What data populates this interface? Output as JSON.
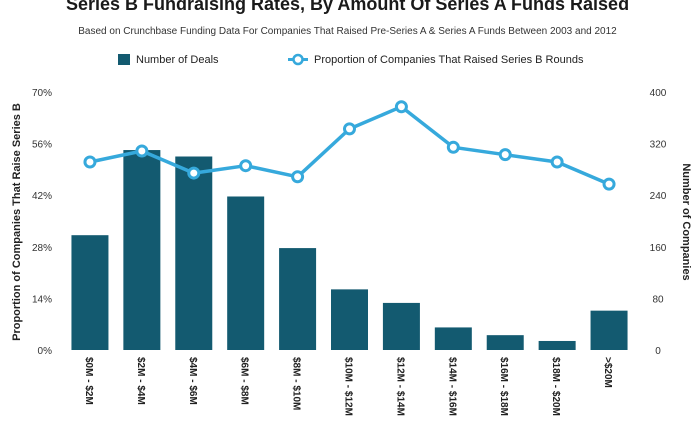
{
  "chart_data": {
    "type": "bar",
    "title": "Series B Fundraising Rates, By Amount Of Series A Funds Raised",
    "subtitle": "Based on Crunchbase Funding Data For Companies That Raised Pre-Series A & Series A Funds Between 2003 and 2012",
    "categories": [
      "$0M - $2M",
      "$2M - $4M",
      "$4M - $6M",
      "$6M - $8M",
      "$8M - $10M",
      "$10M - $12M",
      "$12M - $14M",
      "$14M - $16M",
      "$16M - $18M",
      "$18M - $20M",
      ">$20M"
    ],
    "series": [
      {
        "name": "Number of Deals",
        "type": "bar",
        "axis": "right",
        "values": [
          178,
          310,
          300,
          238,
          158,
          94,
          73,
          35,
          23,
          14,
          61
        ]
      },
      {
        "name": "Proportion of Companies That Raised Series B Rounds",
        "type": "line",
        "axis": "left",
        "values": [
          51,
          54,
          48,
          50,
          47,
          60,
          66,
          55,
          53,
          51,
          45
        ]
      }
    ],
    "y_left": {
      "label": "Proportion of Companies That Raise Series B",
      "min": 0,
      "max": 70,
      "ticks": [
        "0%",
        "14%",
        "28%",
        "42%",
        "56%",
        "70%"
      ]
    },
    "y_right": {
      "label": "Number of Companies",
      "min": 0,
      "max": 400,
      "ticks": [
        "0",
        "80",
        "160",
        "240",
        "320",
        "400"
      ]
    },
    "legend_position": "top",
    "grid": false,
    "colors": {
      "bar": "#135a70",
      "line": "#36a9dc",
      "marker_fill": "#ffffff"
    }
  }
}
